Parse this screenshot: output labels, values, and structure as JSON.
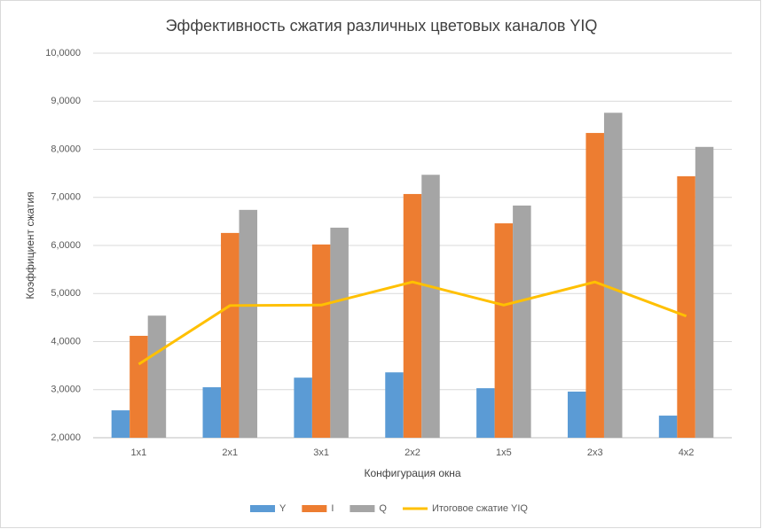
{
  "chart_data": {
    "type": "bar",
    "title": "Эффективность сжатия различных цветовых каналов YIQ",
    "x_label": "Конфигурация окна",
    "y_label": "Коэффициент сжатия",
    "categories": [
      "1x1",
      "2x1",
      "3x1",
      "2x2",
      "1x5",
      "2x3",
      "4x2"
    ],
    "series": [
      {
        "name": "Y",
        "color": "#5b9bd5",
        "type": "bar",
        "values": [
          2.57,
          3.05,
          3.25,
          3.36,
          3.03,
          2.96,
          2.46
        ]
      },
      {
        "name": "I",
        "color": "#ed7d31",
        "type": "bar",
        "values": [
          4.12,
          6.26,
          6.02,
          7.07,
          6.46,
          8.34,
          7.44
        ]
      },
      {
        "name": "Q",
        "color": "#a5a5a5",
        "type": "bar",
        "values": [
          4.54,
          6.74,
          6.37,
          7.47,
          6.83,
          8.76,
          8.05
        ]
      },
      {
        "name": "Итоговое сжатие YIQ",
        "color": "#ffc000",
        "type": "line",
        "values": [
          3.53,
          4.75,
          4.76,
          5.24,
          4.76,
          5.24,
          4.53
        ]
      }
    ],
    "ylim": [
      2,
      10
    ],
    "yticks": [
      {
        "value": 2,
        "label": "2,0000"
      },
      {
        "value": 3,
        "label": "3,0000"
      },
      {
        "value": 4,
        "label": "4,0000"
      },
      {
        "value": 5,
        "label": "5,0000"
      },
      {
        "value": 6,
        "label": "6,0000"
      },
      {
        "value": 7,
        "label": "7,0000"
      },
      {
        "value": 8,
        "label": "8,0000"
      },
      {
        "value": 9,
        "label": "9,0000"
      },
      {
        "value": 10,
        "label": "10,0000"
      }
    ],
    "grid": true,
    "legend": "bottom"
  }
}
